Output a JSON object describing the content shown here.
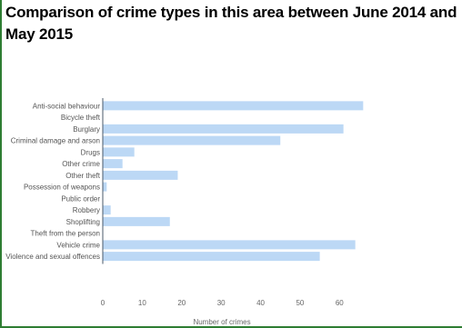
{
  "chart_data": {
    "type": "bar",
    "orientation": "horizontal",
    "title": "Comparison of crime types in this area between June 2014 and May 2015",
    "xlabel": "Number of crimes",
    "ylabel": "",
    "xlim": [
      0,
      65
    ],
    "xticks": [
      0,
      10,
      20,
      30,
      40,
      50,
      60
    ],
    "grid": false,
    "legend": "none",
    "bar_color": "#bcd8f5",
    "axis_color": "#4a5a6a",
    "categories": [
      "Anti-social behaviour",
      "Bicycle theft",
      "Burglary",
      "Criminal damage and arson",
      "Drugs",
      "Other crime",
      "Other theft",
      "Possession of weapons",
      "Public order",
      "Robbery",
      "Shoplifting",
      "Theft from the person",
      "Vehicle crime",
      "Violence and sexual offences"
    ],
    "values": [
      66,
      0,
      61,
      45,
      8,
      5,
      19,
      1,
      0,
      2,
      17,
      0,
      64,
      55
    ]
  }
}
